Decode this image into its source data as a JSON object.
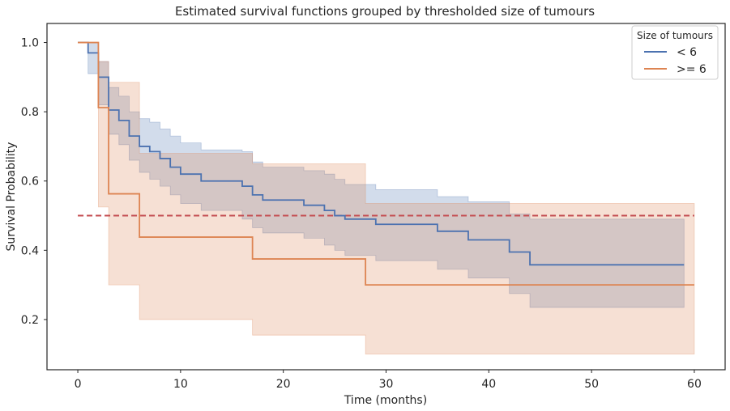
{
  "chart_data": {
    "type": "line",
    "title": "Estimated survival functions grouped by thresholded size of tumours",
    "xlabel": "Time (months)",
    "ylabel": "Survival Probability",
    "xlim": [
      -3,
      63
    ],
    "ylim": [
      0.055,
      1.055
    ],
    "xticks": [
      0,
      10,
      20,
      30,
      40,
      50,
      60
    ],
    "yticks": [
      0.2,
      0.4,
      0.6,
      0.8,
      1.0
    ],
    "xtick_labels": [
      "0",
      "10",
      "20",
      "30",
      "40",
      "50",
      "60"
    ],
    "ytick_labels": [
      "0.2",
      "0.4",
      "0.6",
      "0.8",
      "1.0"
    ],
    "grid": false,
    "legend": {
      "title": "Size of tumours",
      "placement": "top-right",
      "entries": [
        "< 6",
        ">= 6"
      ]
    },
    "reference_line": {
      "y": 0.5,
      "x_start": 0,
      "x_end": 60,
      "color": "#c44e52",
      "style": "dashed"
    },
    "series": [
      {
        "name": "< 6",
        "color": "#4c72b0",
        "step_x": [
          0,
          1,
          2,
          3,
          4,
          5,
          6,
          7,
          8,
          9,
          10,
          12,
          16,
          17,
          18,
          22,
          24,
          25,
          26,
          29,
          35,
          38,
          42,
          44,
          59
        ],
        "survival": [
          1.0,
          0.97,
          0.9,
          0.805,
          0.775,
          0.73,
          0.7,
          0.685,
          0.665,
          0.64,
          0.62,
          0.6,
          0.585,
          0.56,
          0.545,
          0.53,
          0.515,
          0.5,
          0.49,
          0.475,
          0.455,
          0.43,
          0.395,
          0.358,
          0.358
        ],
        "ci_upper": [
          1.0,
          1.0,
          0.945,
          0.87,
          0.845,
          0.8,
          0.78,
          0.77,
          0.75,
          0.73,
          0.71,
          0.69,
          0.685,
          0.655,
          0.64,
          0.63,
          0.62,
          0.605,
          0.59,
          0.575,
          0.555,
          0.54,
          0.505,
          0.49,
          0.49
        ],
        "ci_lower": [
          1.0,
          0.91,
          0.82,
          0.735,
          0.705,
          0.66,
          0.625,
          0.605,
          0.585,
          0.56,
          0.535,
          0.515,
          0.49,
          0.465,
          0.45,
          0.435,
          0.415,
          0.4,
          0.385,
          0.37,
          0.345,
          0.32,
          0.275,
          0.235,
          0.235
        ]
      },
      {
        "name": ">= 6",
        "color": "#dd8452",
        "step_x": [
          0,
          2,
          3,
          6,
          17,
          28,
          60
        ],
        "survival": [
          1.0,
          0.812,
          0.563,
          0.438,
          0.375,
          0.3,
          0.3
        ],
        "ci_upper": [
          1.0,
          0.945,
          0.885,
          0.68,
          0.65,
          0.535,
          0.535
        ],
        "ci_lower": [
          1.0,
          0.525,
          0.3,
          0.2,
          0.155,
          0.1,
          0.1
        ]
      }
    ]
  }
}
